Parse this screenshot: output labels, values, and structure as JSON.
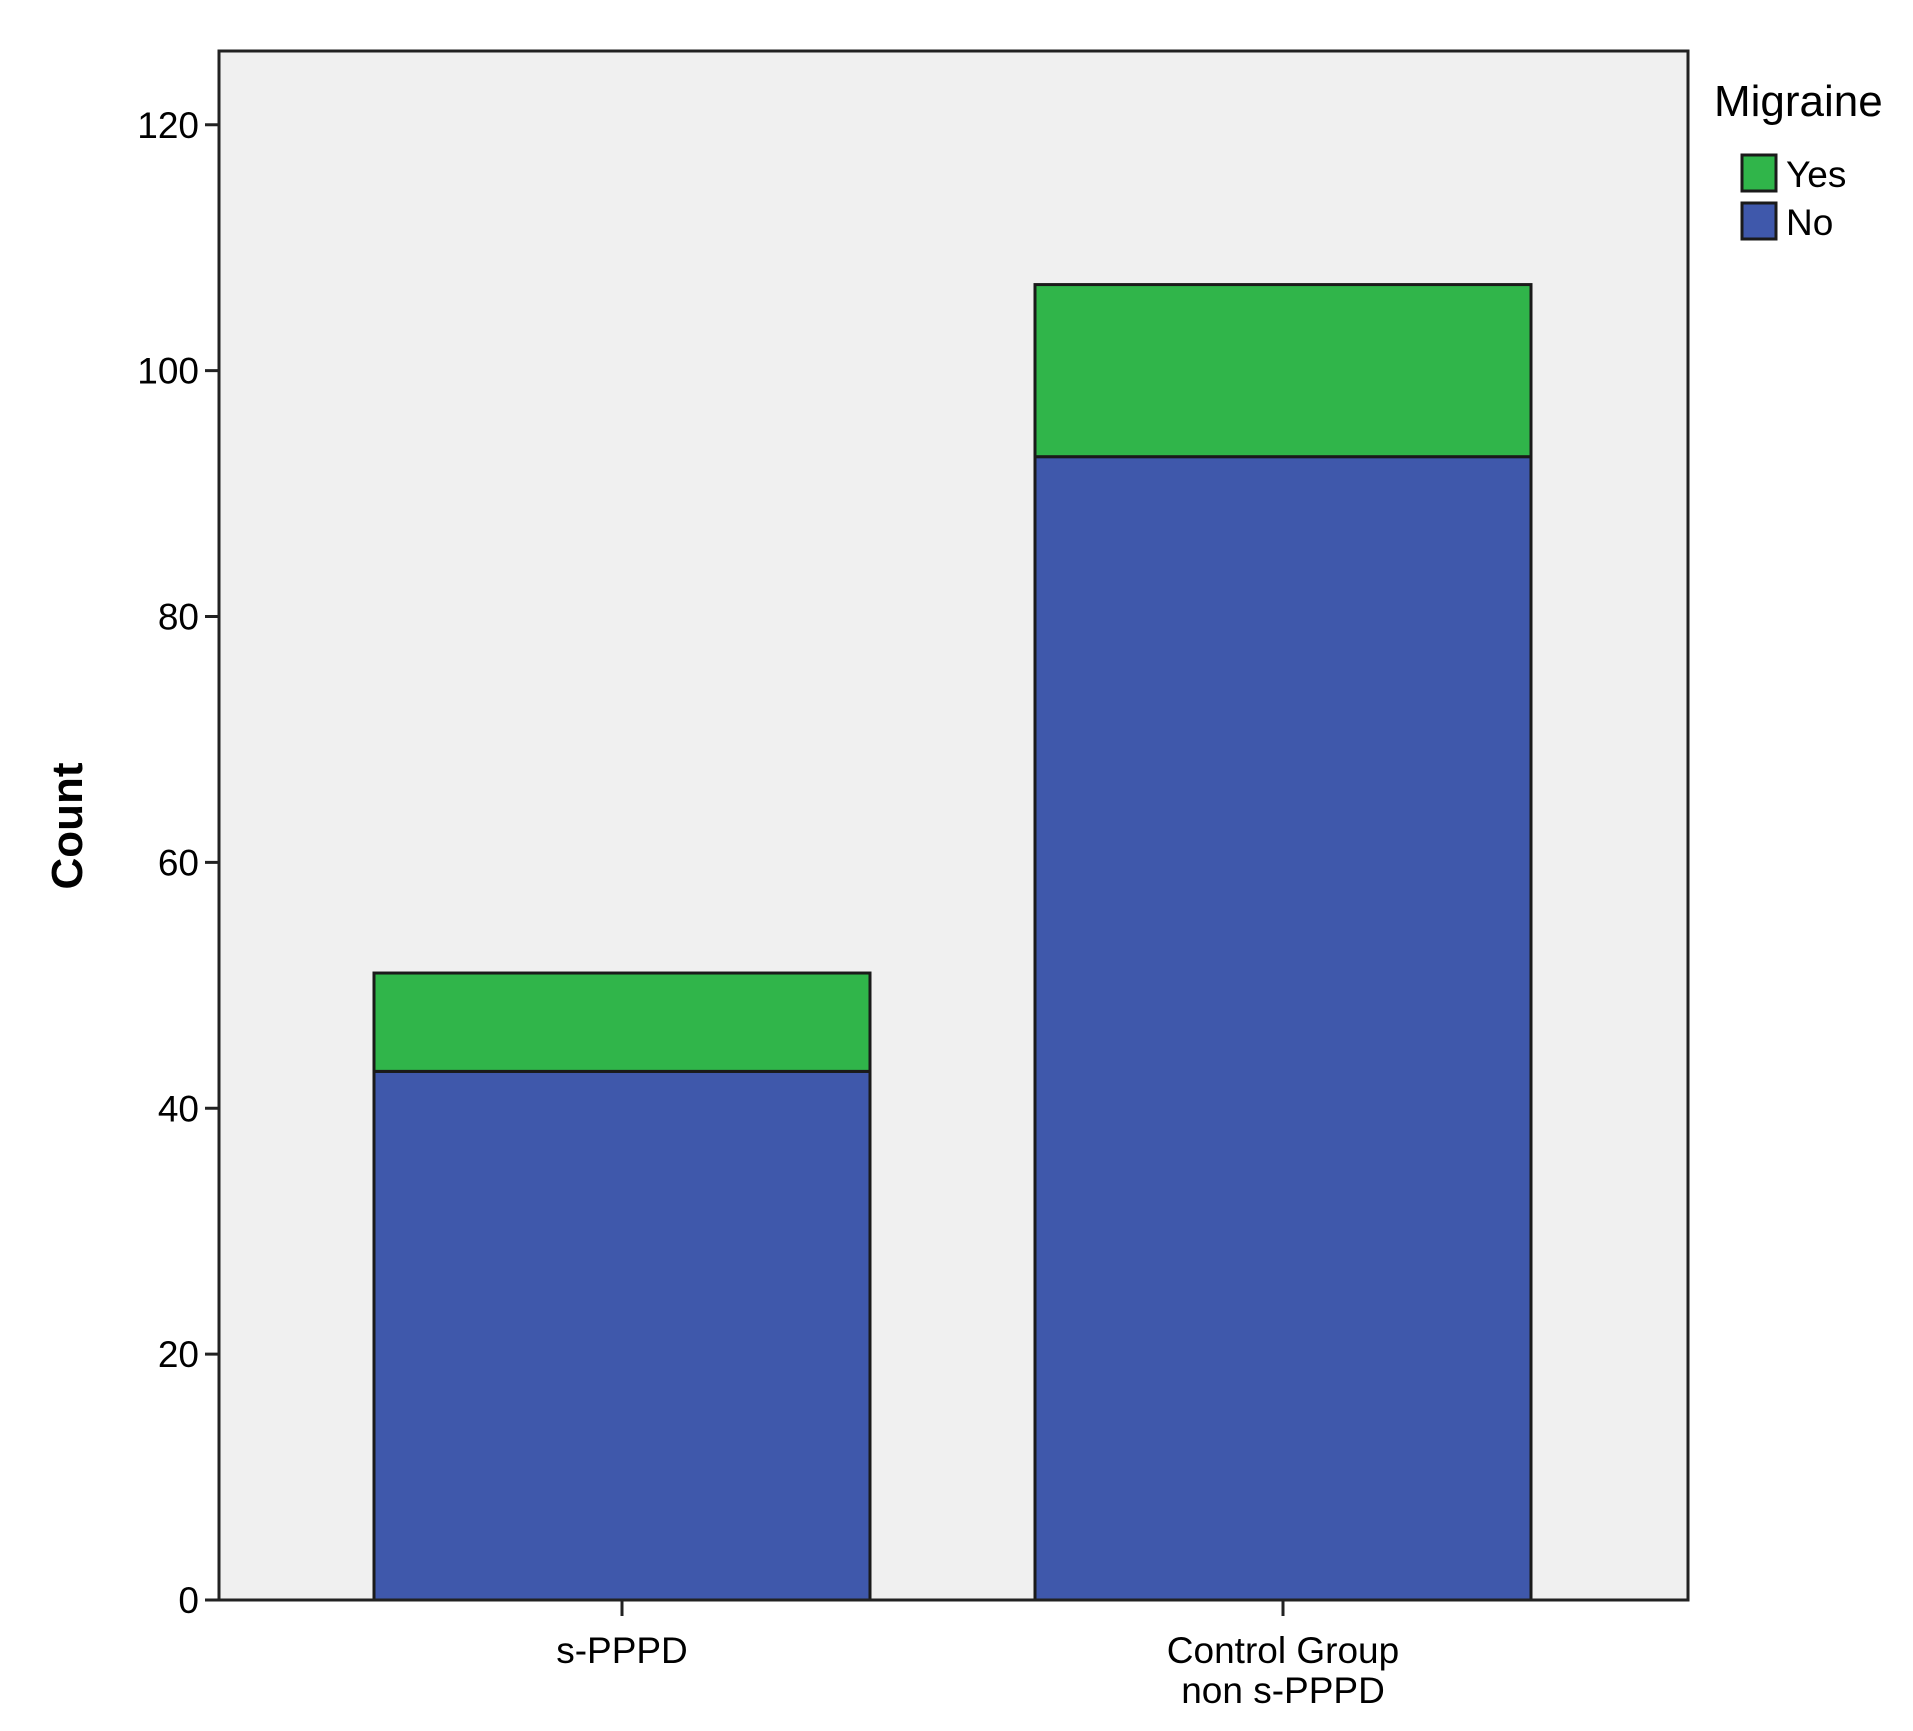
{
  "chart_data": {
    "type": "bar",
    "stacked": true,
    "categories": [
      [
        "s-PPPD"
      ],
      [
        "Control Group",
        "non s-PPPD"
      ]
    ],
    "series": [
      {
        "name": "No",
        "values": [
          43,
          93
        ],
        "color": "#3f58ab"
      },
      {
        "name": "Yes",
        "values": [
          8,
          14
        ],
        "color": "#30b54a"
      }
    ],
    "legend_order": [
      "Yes",
      "No"
    ],
    "title": "",
    "xlabel": "",
    "ylabel": "Count",
    "ylim": [
      0,
      126
    ],
    "yticks": [
      0,
      20,
      40,
      60,
      80,
      100,
      120
    ],
    "legend": {
      "title": "Migraine",
      "position": "right-top"
    },
    "plot_background": "#f0f0f0",
    "grid": false
  }
}
